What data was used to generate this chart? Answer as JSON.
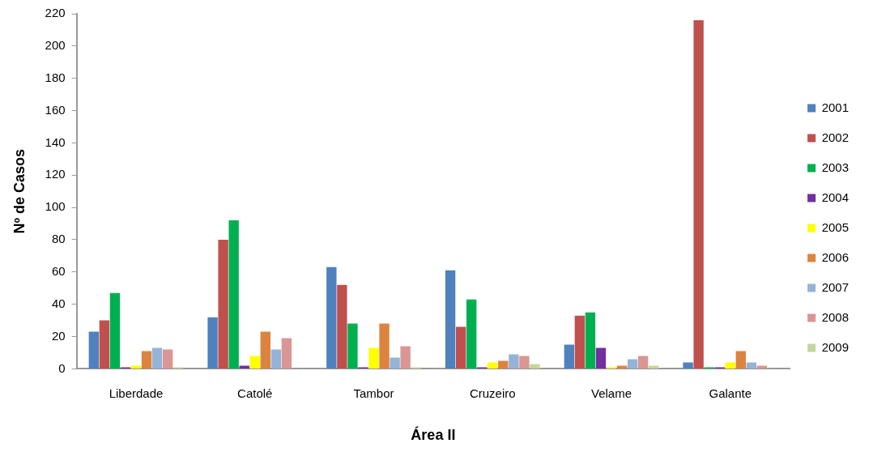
{
  "chart_data": {
    "type": "bar",
    "xlabel": "Área II",
    "ylabel": "Nº de Casos",
    "categories": [
      "Liberdade",
      "Catolé",
      "Tambor",
      "Cruzeiro",
      "Velame",
      "Galante"
    ],
    "series": [
      {
        "name": "2001",
        "color": "#4f81bd",
        "values": [
          23,
          32,
          63,
          61,
          15,
          4
        ]
      },
      {
        "name": "2002",
        "color": "#c0504d",
        "values": [
          30,
          80,
          52,
          26,
          33,
          216
        ]
      },
      {
        "name": "2003",
        "color": "#00b050",
        "values": [
          47,
          92,
          28,
          43,
          35,
          1
        ]
      },
      {
        "name": "2004",
        "color": "#7030a0",
        "values": [
          1,
          2,
          1,
          1,
          13,
          1
        ]
      },
      {
        "name": "2005",
        "color": "#ffff00",
        "values": [
          2,
          8,
          13,
          4,
          1,
          4
        ]
      },
      {
        "name": "2006",
        "color": "#dd8340",
        "values": [
          11,
          23,
          28,
          5,
          2,
          11
        ]
      },
      {
        "name": "2007",
        "color": "#95b3d7",
        "values": [
          13,
          12,
          7,
          9,
          6,
          4
        ]
      },
      {
        "name": "2008",
        "color": "#d99694",
        "values": [
          12,
          19,
          14,
          8,
          8,
          2
        ]
      },
      {
        "name": "2009",
        "color": "#c3d69b",
        "values": [
          1,
          0,
          1,
          3,
          2,
          0
        ]
      }
    ],
    "ylim": [
      0,
      220
    ],
    "yticks": [
      0,
      20,
      40,
      60,
      80,
      100,
      120,
      140,
      160,
      180,
      200,
      220
    ],
    "grid": false,
    "legend": "right"
  }
}
